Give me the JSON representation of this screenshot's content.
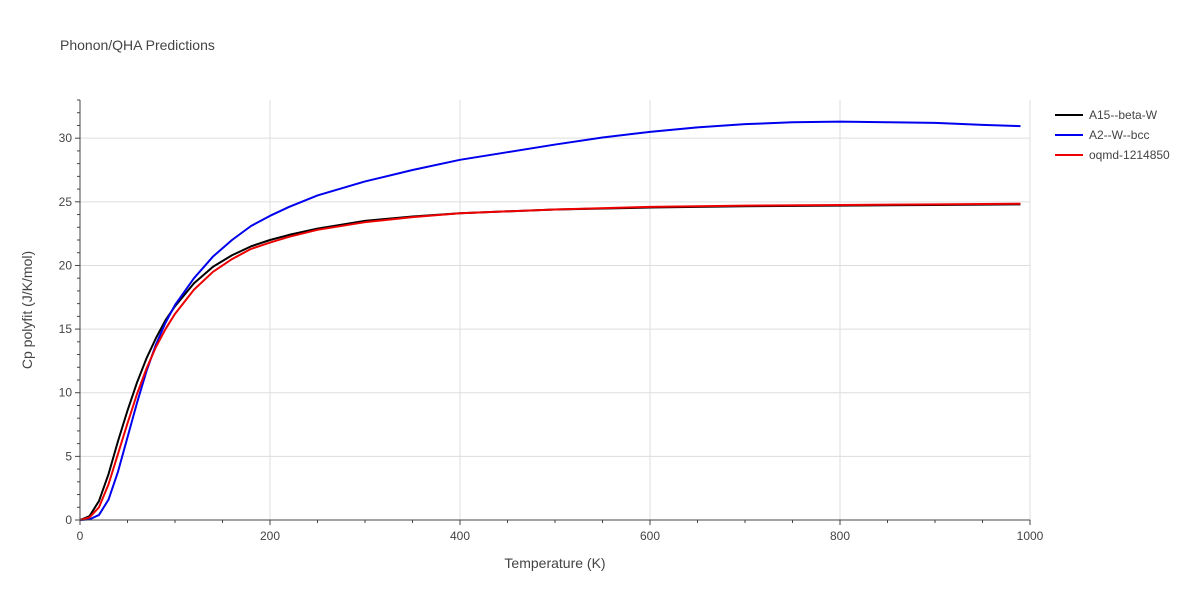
{
  "chart_data": {
    "type": "line",
    "title": "Phonon/QHA Predictions",
    "xlabel": "Temperature (K)",
    "ylabel": "Cp polyfit (J/K/mol)",
    "xlim": [
      0,
      1000
    ],
    "ylim": [
      0,
      33
    ],
    "xticks": [
      0,
      200,
      400,
      600,
      800,
      1000
    ],
    "yticks": [
      0,
      5,
      10,
      15,
      20,
      25,
      30
    ],
    "grid": true,
    "legend_position": "top-right",
    "series": [
      {
        "name": "A15--beta-W",
        "color": "#000000",
        "x": [
          0,
          10,
          20,
          30,
          40,
          50,
          60,
          70,
          80,
          90,
          100,
          120,
          140,
          160,
          180,
          200,
          220,
          250,
          300,
          350,
          400,
          500,
          600,
          700,
          800,
          900,
          990
        ],
        "y": [
          0,
          0.3,
          1.5,
          3.6,
          6.2,
          8.6,
          10.8,
          12.7,
          14.3,
          15.7,
          16.8,
          18.6,
          19.9,
          20.8,
          21.5,
          22.0,
          22.4,
          22.9,
          23.5,
          23.85,
          24.1,
          24.4,
          24.55,
          24.65,
          24.7,
          24.75,
          24.8
        ]
      },
      {
        "name": "A2--W--bcc",
        "color": "#0000ee",
        "x": [
          0,
          10,
          20,
          30,
          40,
          50,
          60,
          70,
          80,
          90,
          100,
          120,
          140,
          160,
          180,
          200,
          220,
          250,
          300,
          350,
          400,
          450,
          500,
          550,
          600,
          650,
          700,
          750,
          800,
          850,
          900,
          950,
          990
        ],
        "y": [
          0,
          0.05,
          0.4,
          1.6,
          3.8,
          6.5,
          9.2,
          11.7,
          13.8,
          15.5,
          16.9,
          19.0,
          20.7,
          22.0,
          23.1,
          23.9,
          24.6,
          25.5,
          26.6,
          27.5,
          28.3,
          28.9,
          29.5,
          30.05,
          30.5,
          30.85,
          31.1,
          31.25,
          31.3,
          31.25,
          31.2,
          31.05,
          30.95
        ]
      },
      {
        "name": "oqmd-1214850",
        "color": "#ee0000",
        "x": [
          0,
          10,
          20,
          30,
          40,
          50,
          60,
          70,
          80,
          90,
          100,
          120,
          140,
          160,
          180,
          200,
          220,
          250,
          300,
          350,
          400,
          500,
          600,
          700,
          800,
          900,
          990
        ],
        "y": [
          0,
          0.2,
          1.0,
          2.8,
          5.2,
          7.6,
          9.9,
          11.9,
          13.6,
          15.0,
          16.2,
          18.1,
          19.5,
          20.5,
          21.3,
          21.8,
          22.25,
          22.8,
          23.4,
          23.8,
          24.1,
          24.4,
          24.6,
          24.7,
          24.75,
          24.8,
          24.85
        ]
      }
    ]
  }
}
